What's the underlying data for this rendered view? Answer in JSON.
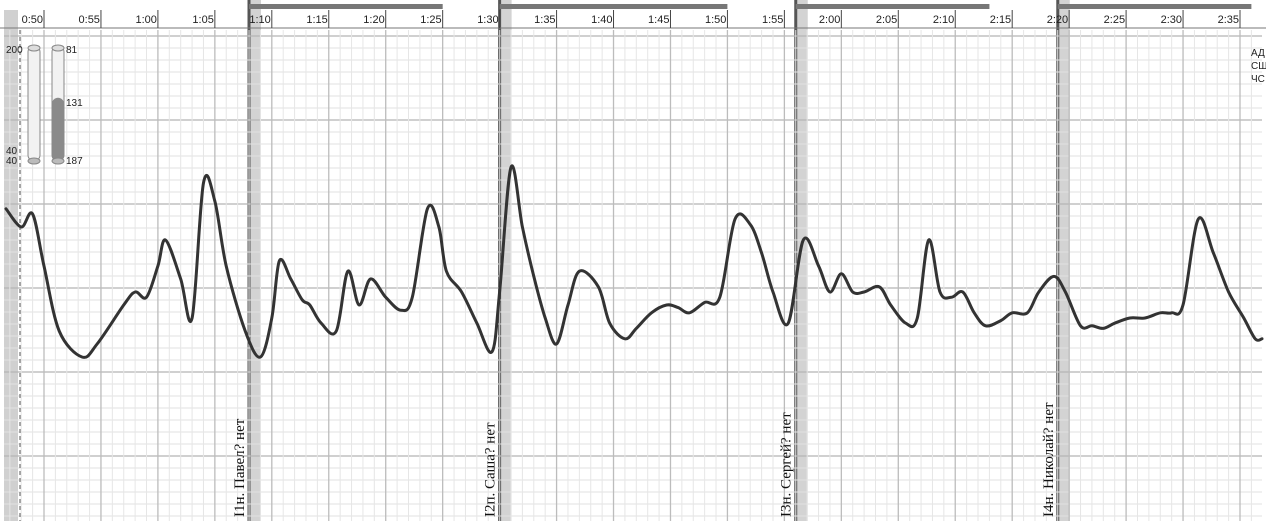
{
  "chart_data": {
    "type": "line",
    "x_ticks": [
      "0:50",
      "0:55",
      "1:00",
      "1:05",
      "1:10",
      "1:15",
      "1:20",
      "1:25",
      "1:30",
      "1:35",
      "1:40",
      "1:45",
      "1:50",
      "1:55",
      "2:00",
      "2:05",
      "2:10",
      "2:15",
      "2:20",
      "2:25",
      "2:30",
      "2:35"
    ],
    "xlim": [
      0.75,
      2.6
    ],
    "grid": true,
    "legend": "none",
    "side_labels": [
      "АД",
      "СШ",
      "ЧС"
    ],
    "gauges": [
      {
        "top_label": "200",
        "low_labels": [
          "40",
          "40"
        ],
        "fill_fraction": 0.0
      },
      {
        "top_label": "81",
        "mid_label": "131",
        "bottom_label": "187",
        "fill_fraction": 0.55
      }
    ],
    "question_marks": [
      {
        "x": 1.1333,
        "label": "I1н. Павел? нет"
      },
      {
        "x": 1.5,
        "label": "I2п. Саша? нет"
      },
      {
        "x": 1.9333,
        "label": "I3н. Сергей? нет"
      },
      {
        "x": 2.3167,
        "label": "I4н. Николай? нет"
      }
    ],
    "series": [
      {
        "x": [
          0.7778,
          0.8,
          0.8167,
          0.8333,
          0.8556,
          0.8889,
          0.9111,
          0.95,
          0.9667,
          0.9833,
          1.0,
          1.0111,
          1.0333,
          1.05,
          1.0667,
          1.0833,
          1.1,
          1.1278,
          1.15,
          1.1667,
          1.1778,
          1.1944,
          1.2111,
          1.2222,
          1.2389,
          1.2611,
          1.2778,
          1.2944,
          1.3111,
          1.3333,
          1.3556,
          1.3722,
          1.3944,
          1.4111,
          1.4222,
          1.4444,
          1.4667,
          1.4889,
          1.5,
          1.5167,
          1.5333,
          1.55,
          1.5667,
          1.5833,
          1.6,
          1.6167,
          1.6444,
          1.6611,
          1.6833,
          1.7,
          1.7222,
          1.7444,
          1.7611,
          1.7778,
          1.8,
          1.8222,
          1.8444,
          1.8667,
          1.8833,
          1.9,
          1.9222,
          1.9444,
          1.9667,
          1.9833,
          2.0,
          2.0167,
          2.0333,
          2.0556,
          2.0722,
          2.0944,
          2.1111,
          2.1278,
          2.1444,
          2.1611,
          2.1778,
          2.1944,
          2.2111,
          2.2333,
          2.25,
          2.2722,
          2.2889,
          2.3111,
          2.3278,
          2.35,
          2.3667,
          2.3833,
          2.4,
          2.4222,
          2.4444,
          2.4667,
          2.4833,
          2.5,
          2.5222,
          2.5444,
          2.5667,
          2.5889,
          2.6056,
          2.6222
        ],
        "y": [
          0.62,
          0.55,
          0.6,
          0.4,
          0.15,
          0.05,
          0.1,
          0.25,
          0.3,
          0.28,
          0.4,
          0.5,
          0.35,
          0.2,
          0.72,
          0.65,
          0.4,
          0.15,
          0.05,
          0.2,
          0.42,
          0.35,
          0.27,
          0.25,
          0.18,
          0.15,
          0.38,
          0.25,
          0.35,
          0.28,
          0.23,
          0.28,
          0.62,
          0.55,
          0.38,
          0.3,
          0.18,
          0.07,
          0.3,
          0.78,
          0.55,
          0.36,
          0.2,
          0.1,
          0.25,
          0.38,
          0.32,
          0.18,
          0.12,
          0.16,
          0.22,
          0.25,
          0.24,
          0.22,
          0.26,
          0.28,
          0.58,
          0.56,
          0.45,
          0.3,
          0.18,
          0.5,
          0.4,
          0.3,
          0.37,
          0.3,
          0.3,
          0.32,
          0.25,
          0.18,
          0.2,
          0.5,
          0.3,
          0.28,
          0.3,
          0.22,
          0.17,
          0.19,
          0.22,
          0.22,
          0.3,
          0.36,
          0.3,
          0.17,
          0.17,
          0.16,
          0.18,
          0.2,
          0.2,
          0.22,
          0.22,
          0.25,
          0.58,
          0.45,
          0.3,
          0.2,
          0.12,
          0.12
        ]
      }
    ]
  }
}
